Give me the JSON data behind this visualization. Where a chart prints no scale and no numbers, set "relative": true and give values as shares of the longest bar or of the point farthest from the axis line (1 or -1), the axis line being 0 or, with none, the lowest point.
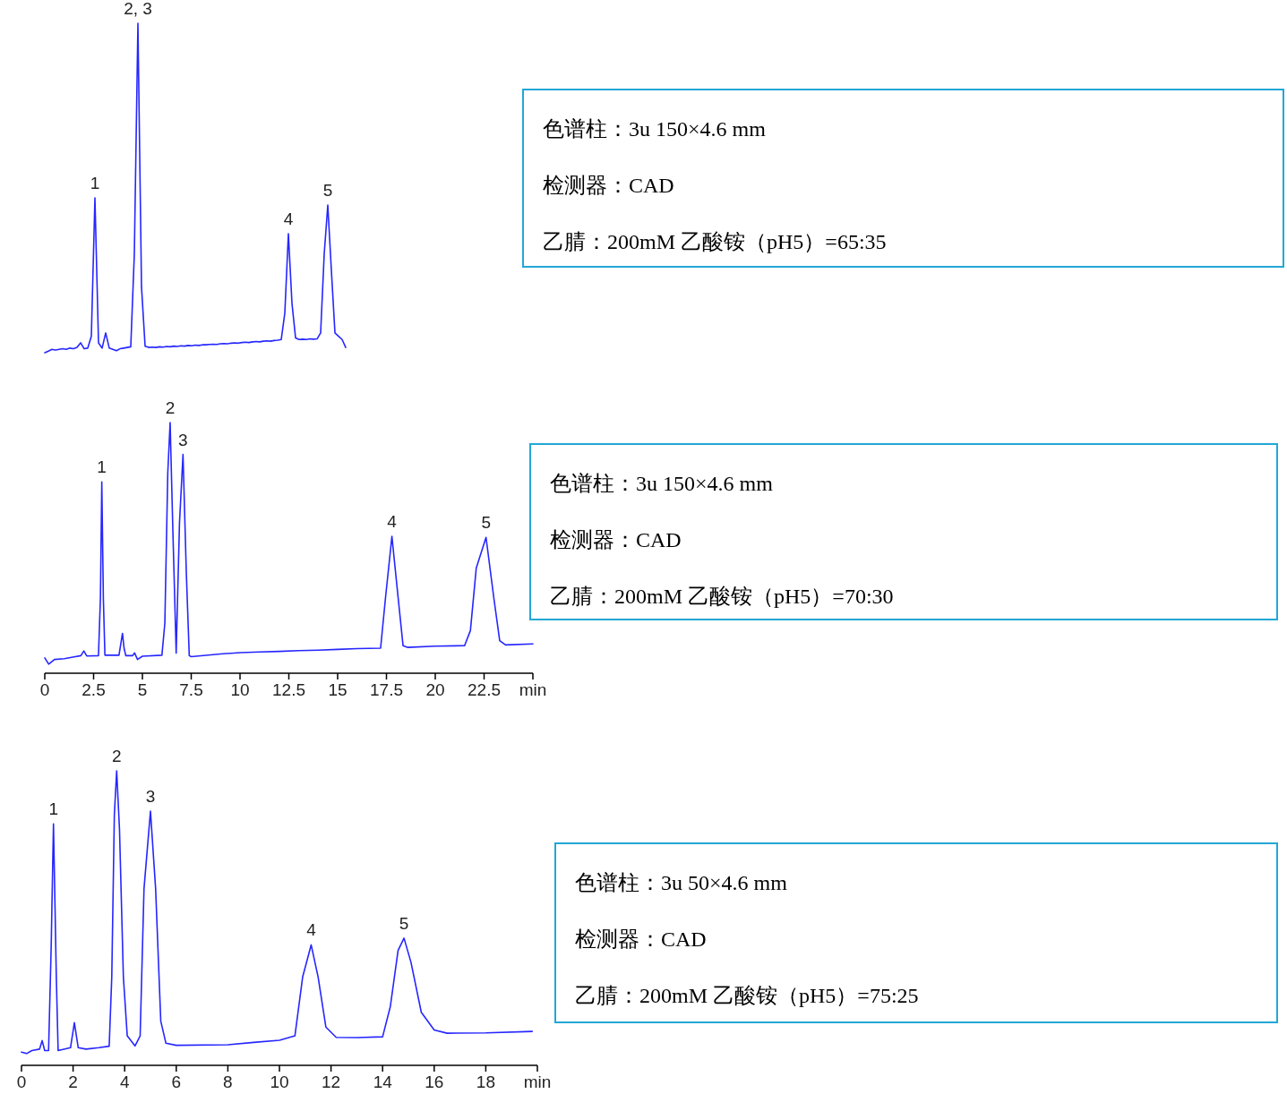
{
  "chart_data": [
    {
      "type": "line",
      "relative": true,
      "color": "#2626ff",
      "tick_labels": false,
      "categories": [
        null,
        null,
        null,
        null,
        null,
        null,
        null,
        null,
        null,
        null,
        null,
        null,
        null,
        null,
        null,
        null,
        null,
        null,
        null,
        null,
        null,
        null,
        null,
        null,
        null,
        null,
        null,
        null,
        null,
        null,
        null,
        null,
        null,
        null,
        null,
        null,
        null,
        null,
        null,
        null,
        null,
        null,
        null,
        null,
        null,
        null,
        null,
        null,
        null,
        null,
        null,
        null,
        null,
        null,
        null,
        null,
        null,
        null,
        null,
        null,
        null,
        null,
        null,
        null,
        null,
        null,
        null,
        null,
        null,
        null,
        null,
        null,
        null,
        null,
        null,
        null,
        null,
        null,
        null,
        null,
        null,
        null,
        null,
        null,
        null
      ],
      "values": [
        0.0,
        0.005,
        0.01,
        0.008,
        0.01,
        0.012,
        0.01,
        0.014,
        0.012,
        0.016,
        0.03,
        0.012,
        0.014,
        0.05,
        0.47,
        0.03,
        0.014,
        0.06,
        0.014,
        0.01,
        0.006,
        0.012,
        0.014,
        0.016,
        0.018,
        0.3,
        1.0,
        0.2,
        0.02,
        0.016,
        0.017,
        0.016,
        0.018,
        0.017,
        0.019,
        0.018,
        0.02,
        0.019,
        0.021,
        0.02,
        0.022,
        0.021,
        0.023,
        0.022,
        0.024,
        0.024,
        0.025,
        0.026,
        0.025,
        0.027,
        0.028,
        0.027,
        0.029,
        0.03,
        0.029,
        0.031,
        0.032,
        0.031,
        0.033,
        0.034,
        0.033,
        0.035,
        0.036,
        0.035,
        0.037,
        0.038,
        0.04,
        0.12,
        0.361,
        0.15,
        0.045,
        0.04,
        0.041,
        0.04,
        0.042,
        0.041,
        0.042,
        0.06,
        0.3,
        0.448,
        0.25,
        0.06,
        0.05,
        0.04,
        0.016
      ],
      "annotations": [
        {
          "text": "1",
          "y": 0.47
        },
        {
          "text": "2, 3",
          "y": 1.0
        },
        {
          "text": "4",
          "y": 0.361
        },
        {
          "text": "5",
          "y": 0.448
        },
        "色谱柱：3u 150×4.6 mm",
        "检测器：CAD",
        "乙腈：200mM 乙酸铵（pH5）=65:35"
      ]
    },
    {
      "type": "line",
      "relative": true,
      "color": "#2626ff",
      "tick_labels": "x",
      "x": [
        0,
        0.2,
        0.5,
        1.0,
        1.5,
        1.85,
        2.0,
        2.15,
        2.75,
        2.85,
        2.92,
        3.0,
        3.08,
        3.8,
        3.9,
        3.98,
        4.06,
        4.15,
        4.5,
        4.6,
        4.75,
        5.0,
        6.0,
        6.15,
        6.3,
        6.42,
        6.55,
        6.73,
        6.9,
        7.08,
        7.25,
        7.4,
        7.5,
        9,
        10,
        11,
        12,
        13,
        14,
        15,
        16,
        17.2,
        17.45,
        17.78,
        18.1,
        18.35,
        18.6,
        20,
        21.5,
        21.8,
        22.1,
        22.6,
        23.0,
        23.3,
        23.6,
        25
      ],
      "values": [
        0.061,
        0.036,
        0.055,
        0.058,
        0.065,
        0.07,
        0.089,
        0.069,
        0.07,
        0.3,
        0.763,
        0.3,
        0.072,
        0.072,
        0.12,
        0.159,
        0.1,
        0.07,
        0.07,
        0.081,
        0.055,
        0.068,
        0.072,
        0.2,
        0.8,
        1.0,
        0.6,
        0.08,
        0.6,
        0.873,
        0.4,
        0.07,
        0.066,
        0.077,
        0.082,
        0.085,
        0.087,
        0.09,
        0.092,
        0.095,
        0.098,
        0.1,
        0.3,
        0.546,
        0.3,
        0.11,
        0.103,
        0.108,
        0.11,
        0.17,
        0.42,
        0.542,
        0.3,
        0.13,
        0.113,
        0.117
      ],
      "xlim": [
        0,
        25
      ],
      "xticks": [
        0,
        2.5,
        5,
        7.5,
        10,
        12.5,
        15,
        17.5,
        20,
        22.5,
        {
          "value": 25,
          "label": "min"
        }
      ],
      "annotations": [
        {
          "text": "1",
          "x": 2.92,
          "y": 0.763
        },
        {
          "text": "2",
          "x": 6.42,
          "y": 1.0
        },
        {
          "text": "3",
          "x": 7.08,
          "y": 0.873
        },
        {
          "text": "4",
          "x": 17.78,
          "y": 0.546
        },
        {
          "text": "5",
          "x": 22.6,
          "y": 0.542
        },
        "色谱柱：3u 150×4.6 mm",
        "检测器：CAD",
        "乙腈：200mM  乙酸铵（pH5）=70:30"
      ]
    },
    {
      "type": "line",
      "relative": true,
      "color": "#2626ff",
      "tick_labels": "x",
      "x": [
        0,
        0.2,
        0.4,
        0.7,
        0.8,
        0.9,
        1.05,
        1.15,
        1.24,
        1.35,
        1.42,
        1.9,
        2.05,
        2.2,
        2.5,
        3.0,
        3.4,
        3.5,
        3.6,
        3.69,
        3.8,
        3.95,
        4.1,
        4.4,
        4.6,
        4.75,
        5.0,
        5.2,
        5.4,
        5.6,
        6,
        8,
        9,
        10,
        10.6,
        10.9,
        11.23,
        11.5,
        11.8,
        12.2,
        13,
        14.0,
        14.3,
        14.6,
        14.83,
        15.1,
        15.5,
        16,
        16.5,
        18,
        19.8
      ],
      "values": [
        0.045,
        0.04,
        0.05,
        0.055,
        0.084,
        0.05,
        0.05,
        0.4,
        0.82,
        0.3,
        0.05,
        0.06,
        0.145,
        0.06,
        0.055,
        0.06,
        0.065,
        0.3,
        0.85,
        1.0,
        0.8,
        0.3,
        0.1,
        0.066,
        0.1,
        0.6,
        0.863,
        0.6,
        0.15,
        0.075,
        0.068,
        0.07,
        0.078,
        0.085,
        0.1,
        0.3,
        0.409,
        0.3,
        0.13,
        0.095,
        0.094,
        0.097,
        0.2,
        0.39,
        0.432,
        0.35,
        0.18,
        0.12,
        0.109,
        0.11,
        0.115
      ],
      "xlim": [
        0,
        20
      ],
      "xticks": [
        0,
        2,
        4,
        6,
        8,
        10,
        12,
        14,
        16,
        18,
        {
          "value": 20,
          "label": "min"
        }
      ],
      "annotations": [
        {
          "text": "1",
          "x": 1.24,
          "y": 0.82
        },
        {
          "text": "2",
          "x": 3.69,
          "y": 1.0
        },
        {
          "text": "3",
          "x": 5.0,
          "y": 0.863
        },
        {
          "text": "4",
          "x": 11.23,
          "y": 0.409
        },
        {
          "text": "5",
          "x": 14.83,
          "y": 0.432
        },
        "色谱柱：3u 50×4.6 mm",
        "检测器：CAD",
        "乙腈：200mM  乙酸铵（pH5）=75:25"
      ]
    }
  ]
}
